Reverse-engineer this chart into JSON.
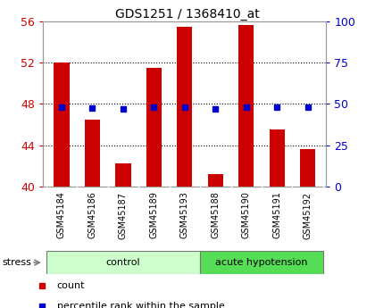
{
  "title": "GDS1251 / 1368410_at",
  "samples": [
    "GSM45184",
    "GSM45186",
    "GSM45187",
    "GSM45189",
    "GSM45193",
    "GSM45188",
    "GSM45190",
    "GSM45191",
    "GSM45192"
  ],
  "count_values": [
    52.0,
    46.5,
    42.2,
    51.5,
    55.5,
    41.2,
    55.7,
    45.5,
    43.6
  ],
  "percentile_values": [
    48.0,
    47.7,
    47.1,
    47.9,
    48.1,
    47.2,
    48.1,
    47.9,
    47.8
  ],
  "ylim_left": [
    40,
    56
  ],
  "ylim_right": [
    0,
    100
  ],
  "yticks_left": [
    40,
    44,
    48,
    52,
    56
  ],
  "yticks_right": [
    0,
    25,
    50,
    75,
    100
  ],
  "bar_color": "#cc0000",
  "dot_color": "#0000cc",
  "bar_bottom": 40,
  "groups": [
    {
      "label": "control",
      "start": 0,
      "end": 5,
      "color": "#ccffcc",
      "edge": "#88bb88"
    },
    {
      "label": "acute hypotension",
      "start": 5,
      "end": 9,
      "color": "#55dd55",
      "edge": "#33aa33"
    }
  ],
  "sample_label_bg": "#cccccc",
  "stress_label": "stress",
  "legend_items": [
    {
      "label": "count",
      "color": "#cc0000"
    },
    {
      "label": "percentile rank within the sample",
      "color": "#0000cc"
    }
  ],
  "background_color": "#ffffff",
  "tick_label_color_left": "#cc0000",
  "tick_label_color_right": "#0000cc"
}
